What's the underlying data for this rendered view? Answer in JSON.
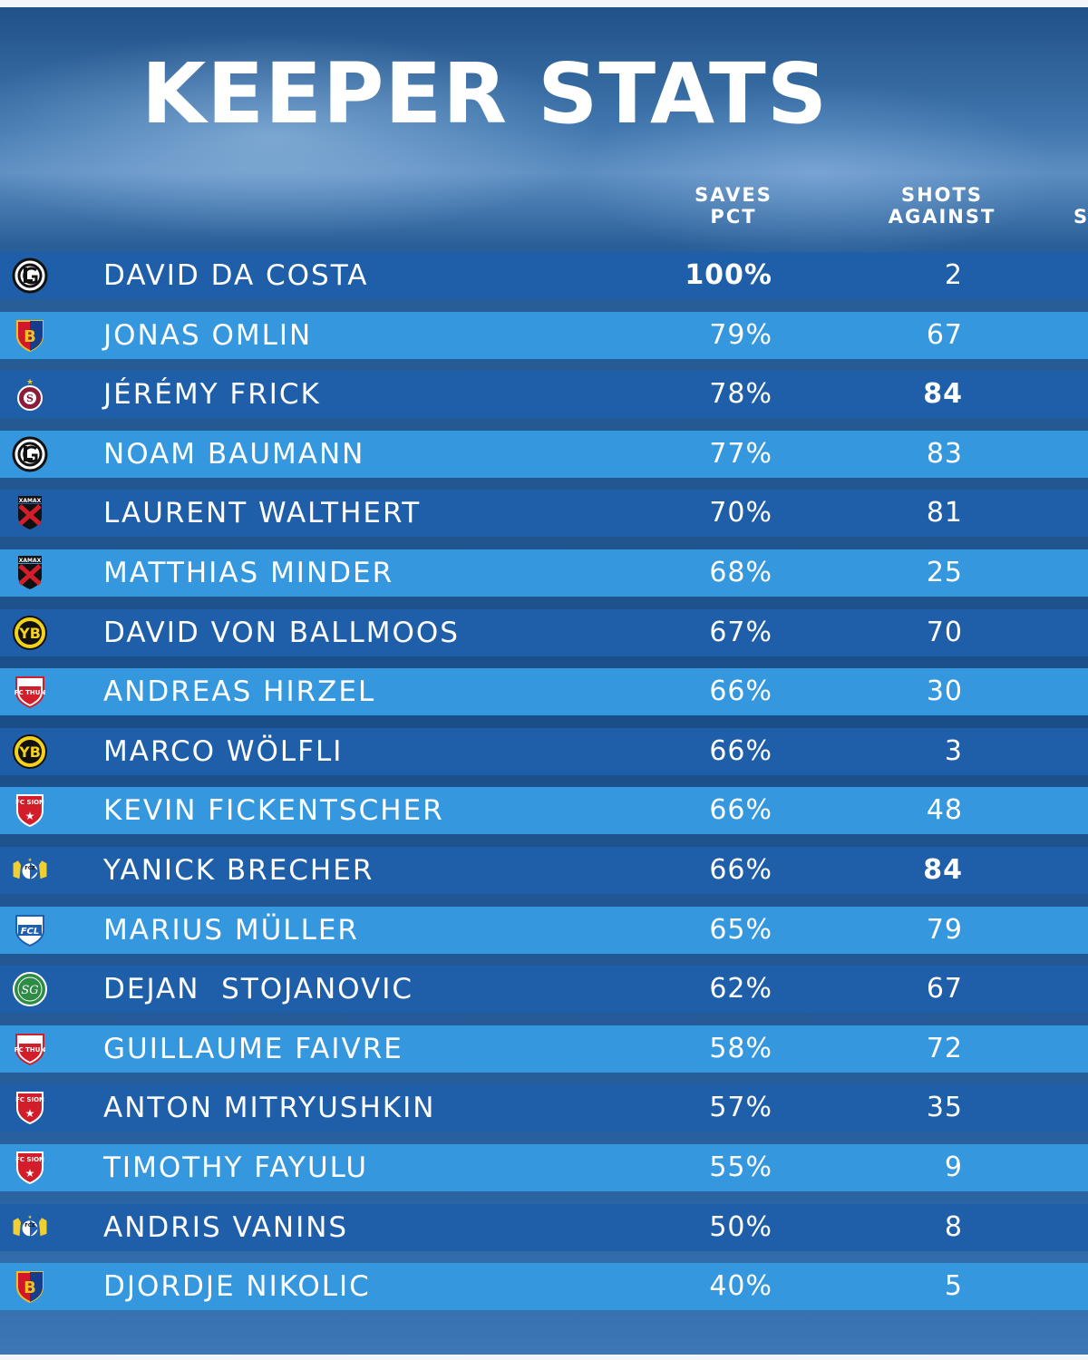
{
  "title": "KEEPER STATS",
  "columns": {
    "saves_pct": [
      "SAVES",
      "PCT"
    ],
    "shots_against": [
      "SHOTS",
      "AGAINST"
    ],
    "cut_off": "S"
  },
  "colors": {
    "row_dark": "#1f5ea8",
    "row_light": "#3597dd",
    "text": "#ffffff"
  },
  "chart_data": {
    "type": "table",
    "title": "KEEPER STATS",
    "columns": [
      "SAVES PCT",
      "SHOTS AGAINST"
    ],
    "rows": [
      {
        "crest": "lugano-crest-icon",
        "name": "DAVID DA COSTA",
        "saves_pct": "100%",
        "shots_against": "2",
        "pct_bold": true,
        "shots_bold": false
      },
      {
        "crest": "basel-crest-icon",
        "name": "JONAS OMLIN",
        "saves_pct": "79%",
        "shots_against": "67",
        "pct_bold": false,
        "shots_bold": false
      },
      {
        "crest": "servette-crest-icon",
        "name": "JÉRÉMY FRICK",
        "saves_pct": "78%",
        "shots_against": "84",
        "pct_bold": false,
        "shots_bold": true
      },
      {
        "crest": "lugano-crest-icon",
        "name": "NOAM BAUMANN",
        "saves_pct": "77%",
        "shots_against": "83",
        "pct_bold": false,
        "shots_bold": false
      },
      {
        "crest": "xamax-crest-icon",
        "name": "LAURENT WALTHERT",
        "saves_pct": "70%",
        "shots_against": "81",
        "pct_bold": false,
        "shots_bold": false
      },
      {
        "crest": "xamax-crest-icon",
        "name": "MATTHIAS MINDER",
        "saves_pct": "68%",
        "shots_against": "25",
        "pct_bold": false,
        "shots_bold": false
      },
      {
        "crest": "young-boys-crest-icon",
        "name": "DAVID VON BALLMOOS",
        "saves_pct": "67%",
        "shots_against": "70",
        "pct_bold": false,
        "shots_bold": false
      },
      {
        "crest": "thun-crest-icon",
        "name": "ANDREAS HIRZEL",
        "saves_pct": "66%",
        "shots_against": "30",
        "pct_bold": false,
        "shots_bold": false
      },
      {
        "crest": "young-boys-crest-icon",
        "name": "MARCO WÖLFLI",
        "saves_pct": "66%",
        "shots_against": "3",
        "pct_bold": false,
        "shots_bold": false
      },
      {
        "crest": "sion-crest-icon",
        "name": "KEVIN FICKENTSCHER",
        "saves_pct": "66%",
        "shots_against": "48",
        "pct_bold": false,
        "shots_bold": false
      },
      {
        "crest": "zurich-crest-icon",
        "name": "YANICK BRECHER",
        "saves_pct": "66%",
        "shots_against": "84",
        "pct_bold": false,
        "shots_bold": true
      },
      {
        "crest": "luzern-crest-icon",
        "name": "MARIUS MÜLLER",
        "saves_pct": "65%",
        "shots_against": "79",
        "pct_bold": false,
        "shots_bold": false
      },
      {
        "crest": "st-gallen-crest-icon",
        "name": "DEJAN  STOJANOVIC",
        "saves_pct": "62%",
        "shots_against": "67",
        "pct_bold": false,
        "shots_bold": false
      },
      {
        "crest": "thun-crest-icon",
        "name": "GUILLAUME FAIVRE",
        "saves_pct": "58%",
        "shots_against": "72",
        "pct_bold": false,
        "shots_bold": false
      },
      {
        "crest": "sion-crest-icon",
        "name": "ANTON MITRYUSHKIN",
        "saves_pct": "57%",
        "shots_against": "35",
        "pct_bold": false,
        "shots_bold": false
      },
      {
        "crest": "sion-crest-icon",
        "name": "TIMOTHY FAYULU",
        "saves_pct": "55%",
        "shots_against": "9",
        "pct_bold": false,
        "shots_bold": false
      },
      {
        "crest": "zurich-crest-icon",
        "name": "ANDRIS VANINS",
        "saves_pct": "50%",
        "shots_against": "8",
        "pct_bold": false,
        "shots_bold": false
      },
      {
        "crest": "basel-crest-icon",
        "name": "DJORDJE NIKOLIC",
        "saves_pct": "40%",
        "shots_against": "5",
        "pct_bold": false,
        "shots_bold": false
      }
    ]
  }
}
